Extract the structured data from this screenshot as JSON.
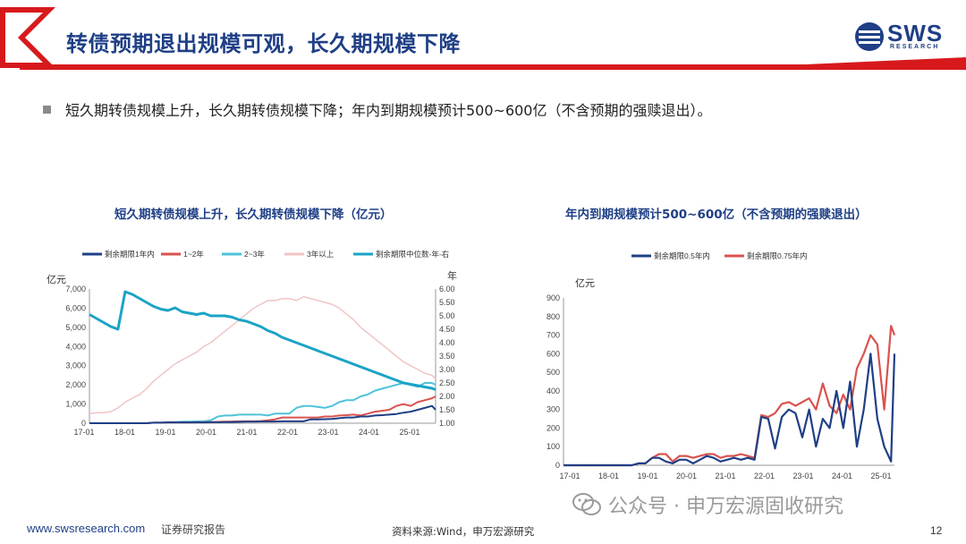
{
  "header": {
    "title": "转债预期退出规模可观，长久期规模下降",
    "logo_text": "SWS",
    "logo_sub": "RESEARCH"
  },
  "bullet": {
    "text": "短久期转债规模上升，长久期转债规模下降；年内到期规模预计500~600亿（不含预期的强赎退出）。"
  },
  "footer": {
    "url": "www.swsresearch.com",
    "report": "证券研究报告",
    "source": "资料来源:Wind，申万宏源研究",
    "page": "12",
    "watermark": "公众号 · 申万宏源固收研究"
  },
  "colors": {
    "brand": "#1f3f86",
    "accent_red": "#d7191c",
    "dark_blue": "#1f3f86",
    "red": "#d9534f",
    "cyan": "#4fc3d9",
    "pink": "#f2c4c4",
    "teal": "#1ba3c6"
  },
  "chart_data": [
    {
      "type": "line",
      "title": "短久期转债规模上升，长久期转债规模下降（亿元）",
      "y_unit_left": "亿元",
      "y_unit_right": "年",
      "ylim_left": [
        0,
        7000
      ],
      "ylim_right": [
        1.0,
        6.0
      ],
      "yticks_left": [
        "0",
        "1,000",
        "2,000",
        "3,000",
        "4,000",
        "5,000",
        "6,000",
        "7,000"
      ],
      "yticks_right": [
        "1.00",
        "1.50",
        "2.00",
        "2.50",
        "3.00",
        "3.50",
        "4.00",
        "4.50",
        "5.00",
        "5.50",
        "6.00"
      ],
      "x_ticks": [
        "17-01",
        "18-01",
        "19-01",
        "20-01",
        "21-01",
        "22-01",
        "23-01",
        "24-01",
        "25-01"
      ],
      "legend_position": "top",
      "x": [
        0,
        2,
        4,
        6,
        8,
        10,
        11,
        12,
        14,
        16,
        18,
        20,
        22,
        24,
        26,
        28,
        30,
        32,
        34,
        36,
        38,
        40,
        42,
        44,
        46,
        48,
        50,
        52,
        54,
        56,
        58,
        60,
        62,
        64,
        66,
        68,
        70,
        72,
        74,
        76,
        78,
        80,
        82,
        84,
        86,
        88,
        90,
        92,
        94,
        96,
        97
      ],
      "series": [
        {
          "name": "剩余期限1年内",
          "axis": "left",
          "values": [
            0,
            0,
            0,
            0,
            0,
            0,
            0,
            0,
            0,
            0,
            30,
            30,
            40,
            40,
            40,
            40,
            40,
            40,
            50,
            50,
            60,
            60,
            70,
            80,
            80,
            90,
            90,
            90,
            100,
            100,
            100,
            100,
            200,
            200,
            210,
            220,
            260,
            300,
            300,
            350,
            350,
            400,
            420,
            450,
            480,
            550,
            600,
            700,
            800,
            900,
            700
          ]
        },
        {
          "name": "1~2年",
          "axis": "left",
          "values": [
            0,
            0,
            0,
            0,
            0,
            0,
            0,
            0,
            0,
            0,
            30,
            30,
            40,
            40,
            40,
            40,
            50,
            50,
            60,
            70,
            80,
            90,
            100,
            100,
            100,
            110,
            150,
            200,
            300,
            300,
            300,
            300,
            300,
            300,
            350,
            350,
            400,
            420,
            450,
            400,
            500,
            600,
            650,
            700,
            900,
            1000,
            900,
            1100,
            1200,
            1300,
            1400
          ]
        },
        {
          "name": "2~3年",
          "axis": "left",
          "values": [
            0,
            0,
            0,
            0,
            0,
            0,
            0,
            0,
            0,
            0,
            30,
            30,
            60,
            60,
            80,
            80,
            100,
            100,
            150,
            350,
            400,
            400,
            450,
            450,
            450,
            450,
            400,
            500,
            500,
            500,
            800,
            900,
            900,
            850,
            800,
            900,
            1100,
            1200,
            1200,
            1400,
            1500,
            1700,
            1800,
            1900,
            2000,
            2100,
            2000,
            1900,
            2100,
            2100,
            2000
          ]
        },
        {
          "name": "3年以上",
          "axis": "left",
          "values": [
            500,
            550,
            550,
            600,
            800,
            1100,
            1200,
            1300,
            1500,
            1800,
            2200,
            2500,
            2800,
            3100,
            3300,
            3500,
            3700,
            4000,
            4200,
            4500,
            4800,
            5100,
            5400,
            5700,
            6000,
            6200,
            6400,
            6400,
            6500,
            6500,
            6400,
            6600,
            6500,
            6400,
            6300,
            6200,
            6000,
            5700,
            5400,
            5000,
            4700,
            4400,
            4100,
            3800,
            3500,
            3200,
            3000,
            2800,
            2600,
            2500,
            2300
          ]
        },
        {
          "name": "剩余期限中位数-年-右",
          "axis": "right",
          "values": [
            5.05,
            4.9,
            4.75,
            4.6,
            4.5,
            5.9,
            5.85,
            5.8,
            5.65,
            5.5,
            5.35,
            5.25,
            5.2,
            5.3,
            5.15,
            5.1,
            5.05,
            5.1,
            5.0,
            5.0,
            5.0,
            4.95,
            4.85,
            4.8,
            4.7,
            4.6,
            4.45,
            4.35,
            4.2,
            4.1,
            4.0,
            3.9,
            3.8,
            3.7,
            3.6,
            3.5,
            3.4,
            3.3,
            3.2,
            3.1,
            3.0,
            2.9,
            2.8,
            2.7,
            2.6,
            2.5,
            2.45,
            2.4,
            2.35,
            2.3,
            2.25
          ]
        }
      ]
    },
    {
      "type": "line",
      "title": "年内到期规模预计500~600亿（不含预期的强赎退出）",
      "y_unit": "亿元",
      "ylim": [
        0,
        900
      ],
      "yticks": [
        "0",
        "100",
        "200",
        "300",
        "400",
        "500",
        "600",
        "700",
        "800",
        "900"
      ],
      "x_ticks": [
        "17-01",
        "18-01",
        "19-01",
        "20-01",
        "21-01",
        "22-01",
        "23-01",
        "24-01",
        "25-01"
      ],
      "legend_position": "top",
      "x": [
        0,
        4,
        8,
        12,
        16,
        20,
        22,
        24,
        26,
        28,
        30,
        32,
        34,
        36,
        38,
        40,
        42,
        44,
        46,
        48,
        50,
        52,
        54,
        56,
        58,
        60,
        62,
        64,
        66,
        68,
        70,
        72,
        74,
        76,
        78,
        80,
        82,
        84,
        86,
        88,
        90,
        92,
        94,
        96,
        97
      ],
      "series": [
        {
          "name": "剩余期限0.5年内",
          "values": [
            0,
            0,
            0,
            0,
            0,
            0,
            10,
            10,
            40,
            40,
            20,
            10,
            30,
            30,
            10,
            30,
            50,
            40,
            20,
            30,
            40,
            30,
            40,
            30,
            260,
            250,
            90,
            260,
            300,
            280,
            150,
            300,
            100,
            250,
            200,
            400,
            200,
            450,
            100,
            300,
            600,
            250,
            100,
            20,
            600
          ]
        },
        {
          "name": "剩余期限0.75年内",
          "values": [
            0,
            0,
            0,
            0,
            0,
            0,
            10,
            10,
            40,
            60,
            60,
            20,
            50,
            50,
            40,
            50,
            60,
            60,
            40,
            50,
            50,
            60,
            50,
            40,
            270,
            260,
            280,
            330,
            340,
            320,
            340,
            360,
            300,
            440,
            320,
            280,
            380,
            300,
            520,
            600,
            700,
            650,
            300,
            750,
            700
          ]
        }
      ]
    }
  ]
}
